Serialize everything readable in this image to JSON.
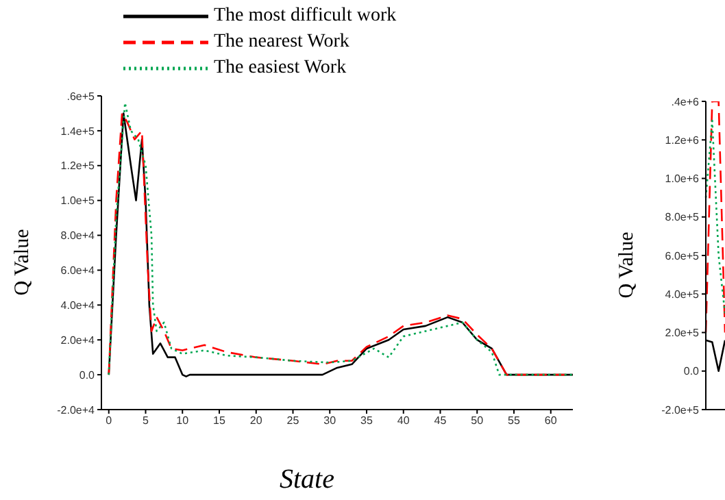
{
  "chart_data": [
    {
      "type": "line",
      "xlabel": "State",
      "ylabel": "Q Value",
      "legend": "top",
      "marker": "none",
      "xlim": [
        -1,
        63
      ],
      "xticks": [
        0,
        5,
        10,
        15,
        20,
        25,
        30,
        35,
        40,
        45,
        50,
        55,
        60
      ],
      "ylim": [
        -20000,
        160000
      ],
      "yticks": [
        {
          "value": -20000,
          "label": "-2.0e+4"
        },
        {
          "value": 0,
          "label": "0.0"
        },
        {
          "value": 20000,
          "label": "2.0e+4"
        },
        {
          "value": 40000,
          "label": "4.0e+4"
        },
        {
          "value": 60000,
          "label": "6.0e+4"
        },
        {
          "value": 80000,
          "label": "8.0e+4"
        },
        {
          "value": 100000,
          "label": "1.0e+5"
        },
        {
          "value": 120000,
          "label": "1.2e+5"
        },
        {
          "value": 140000,
          "label": "1.4e+5"
        },
        {
          "value": 160000,
          "label": ".6e+5"
        }
      ],
      "series": [
        {
          "name": "The most difficult work",
          "color": "#000000",
          "line_style": "solid",
          "x": [
            0,
            1,
            2,
            3,
            3.7,
            4.5,
            5,
            5.5,
            6,
            7,
            8,
            9,
            10,
            10.5,
            11,
            29,
            31,
            33,
            35,
            38,
            40,
            43,
            46,
            48,
            50,
            52,
            54,
            63
          ],
          "values": [
            0,
            80000,
            150000,
            120000,
            100000,
            135000,
            100000,
            40000,
            12000,
            18000,
            10000,
            10000,
            0,
            -1000,
            0,
            0,
            4000,
            6000,
            15000,
            20000,
            26000,
            28000,
            33000,
            30000,
            20000,
            15000,
            0,
            0
          ]
        },
        {
          "name": "The nearest Work",
          "color": "#ff0000",
          "line_style": "dashed",
          "x": [
            0,
            1,
            1.8,
            2.5,
            3.5,
            4.5,
            5.3,
            5.8,
            6.5,
            7.5,
            8.5,
            10,
            13,
            16,
            20,
            25,
            29,
            31,
            33,
            35,
            38,
            40,
            43,
            46,
            48,
            50,
            52,
            54,
            63
          ],
          "values": [
            0,
            100000,
            150000,
            145000,
            135000,
            140000,
            60000,
            25000,
            33000,
            25000,
            15000,
            14000,
            17000,
            13000,
            10000,
            8000,
            6000,
            8000,
            8000,
            16000,
            22000,
            28000,
            30000,
            34000,
            32000,
            23000,
            15000,
            0,
            0
          ]
        },
        {
          "name": "The easiest Work",
          "color": "#00a651",
          "line_style": "dotted",
          "x": [
            0,
            1,
            2.2,
            3,
            4,
            5,
            5.8,
            6,
            6.5,
            7.5,
            8.5,
            10,
            13,
            16,
            20,
            25,
            30,
            33,
            36,
            38,
            40,
            43,
            46,
            48,
            50,
            52,
            53,
            63
          ],
          "values": [
            0,
            90000,
            156000,
            140000,
            135000,
            120000,
            80000,
            40000,
            25000,
            30000,
            15000,
            12000,
            14000,
            11000,
            10000,
            8000,
            7000,
            8000,
            15000,
            10000,
            22000,
            25000,
            28000,
            30000,
            20000,
            13000,
            0,
            0
          ]
        }
      ]
    },
    {
      "type": "line",
      "ylabel": "Q Value",
      "marker": "none",
      "categories": [
        null,
        null,
        null,
        null
      ],
      "ylim": [
        -200000,
        1400000
      ],
      "yticks": [
        {
          "value": -200000,
          "label": "-2.0e+5"
        },
        {
          "value": 0,
          "label": "0.0"
        },
        {
          "value": 200000,
          "label": "2.0e+5"
        },
        {
          "value": 400000,
          "label": "4.0e+5"
        },
        {
          "value": 600000,
          "label": "6.0e+5"
        },
        {
          "value": 800000,
          "label": "8.0e+5"
        },
        {
          "value": 1000000,
          "label": "1.0e+6"
        },
        {
          "value": 1200000,
          "label": "1.2e+6"
        },
        {
          "value": 1400000,
          "label": ".4e+6"
        }
      ],
      "series": [
        {
          "color": "#000000",
          "line_style": "solid",
          "values": [
            160000,
            150000,
            0,
            160000
          ]
        },
        {
          "color": "#ff0000",
          "line_style": "dashed",
          "values": [
            200000,
            1400000,
            1400000,
            200000
          ]
        },
        {
          "color": "#00a651",
          "line_style": "dotted",
          "values": [
            900000,
            1300000,
            600000,
            300000
          ]
        }
      ]
    }
  ]
}
